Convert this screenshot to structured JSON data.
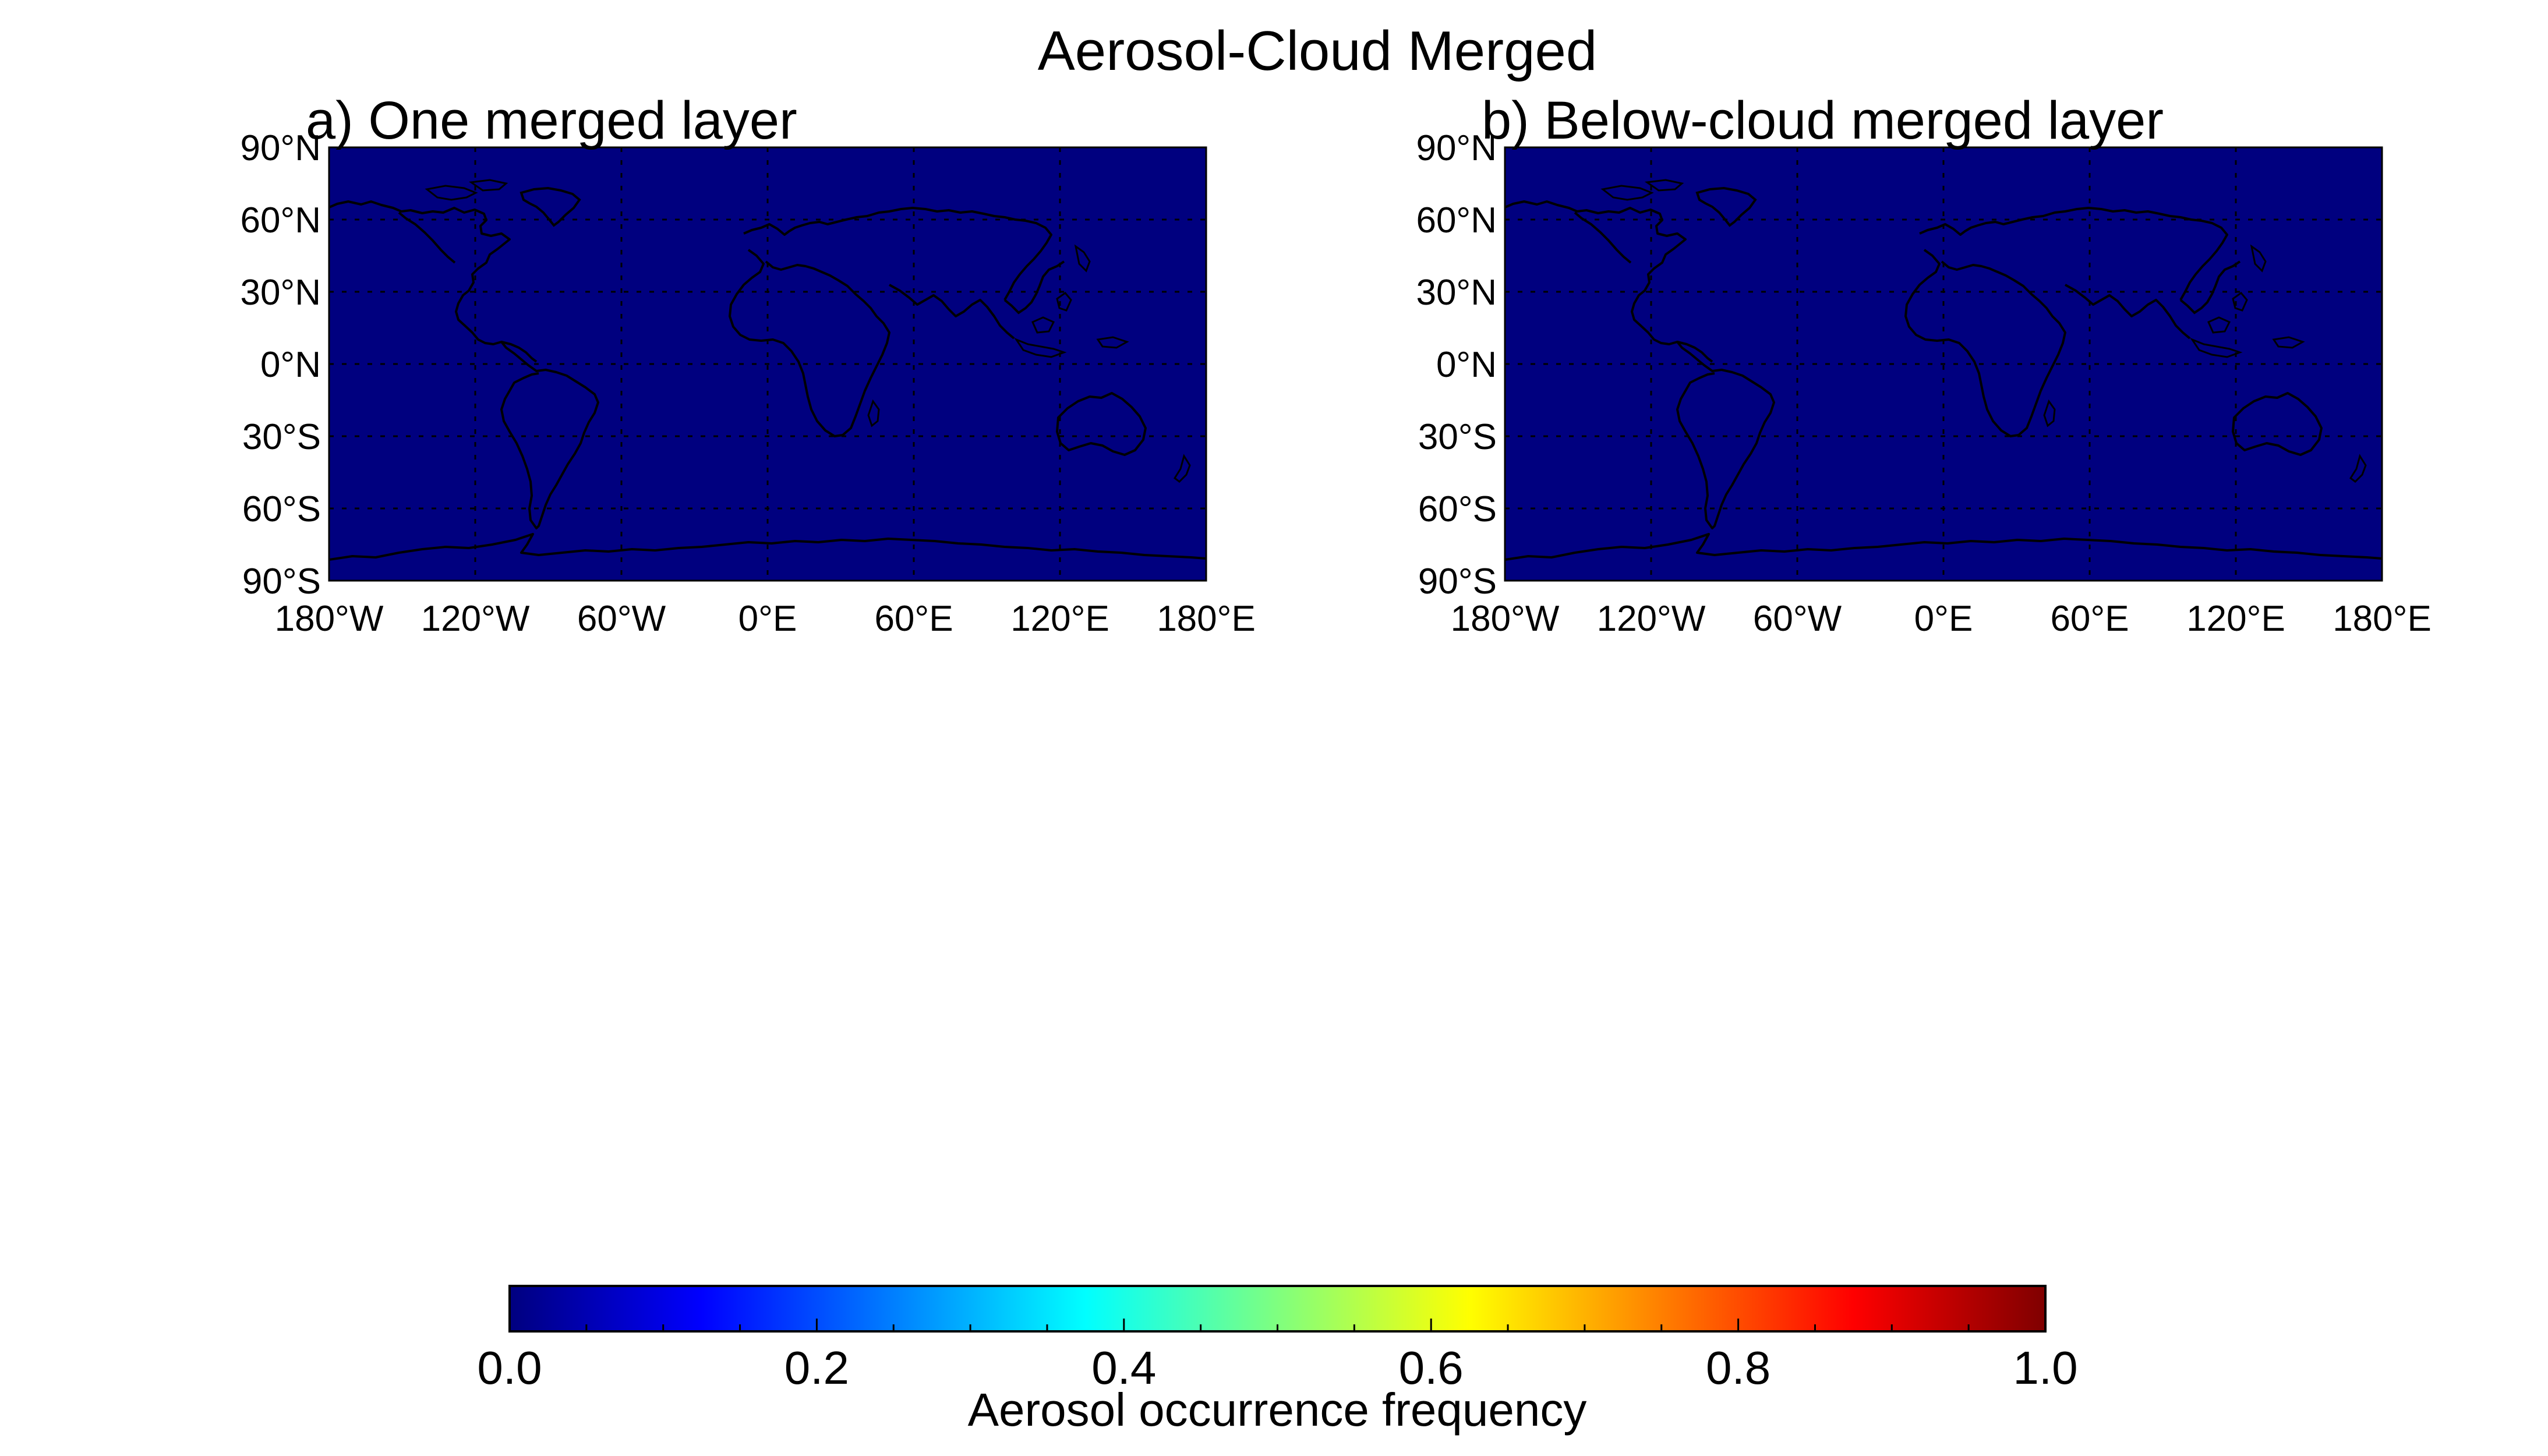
{
  "figure": {
    "title": "Aerosol-Cloud Merged"
  },
  "panels": [
    {
      "id": "a",
      "title": "a) One merged layer",
      "lat_ticks": [
        "90°N",
        "60°N",
        "30°N",
        "0°N",
        "30°S",
        "60°S",
        "90°S"
      ],
      "lon_ticks": [
        "180°W",
        "120°W",
        "60°W",
        "0°E",
        "60°E",
        "120°E",
        "180°E"
      ]
    },
    {
      "id": "b",
      "title": "b) Below-cloud merged layer",
      "lat_ticks": [
        "90°N",
        "60°N",
        "30°N",
        "0°N",
        "30°S",
        "60°S",
        "90°S"
      ],
      "lon_ticks": [
        "180°W",
        "120°W",
        "60°W",
        "0°E",
        "60°E",
        "120°E",
        "180°E"
      ]
    }
  ],
  "colorbar": {
    "label": "Aerosol occurrence frequency",
    "ticks": [
      "0.0",
      "0.2",
      "0.4",
      "0.6",
      "0.8",
      "1.0"
    ],
    "range": [
      0.0,
      1.0
    ],
    "colormap": "jet",
    "colors": [
      "#00007f",
      "#0000ff",
      "#007fff",
      "#00ffff",
      "#7fff7f",
      "#ffff00",
      "#ff7f00",
      "#ff0000",
      "#7f0000"
    ]
  },
  "chart_data": [
    {
      "type": "heatmap",
      "title": "a) One merged layer",
      "projection": "equirectangular",
      "lon_range": [
        -180,
        180
      ],
      "lat_range": [
        -90,
        90
      ],
      "lon_ticks": [
        -180,
        -120,
        -60,
        0,
        60,
        120,
        180
      ],
      "lat_ticks": [
        90,
        60,
        30,
        0,
        -30,
        -60,
        -90
      ],
      "grid": true,
      "field_value": 0.0,
      "fill_color": "#00007f",
      "coastlines": true
    },
    {
      "type": "heatmap",
      "title": "b) Below-cloud merged layer",
      "projection": "equirectangular",
      "lon_range": [
        -180,
        180
      ],
      "lat_range": [
        -90,
        90
      ],
      "lon_ticks": [
        -180,
        -120,
        -60,
        0,
        60,
        120,
        180
      ],
      "lat_ticks": [
        90,
        60,
        30,
        0,
        -30,
        -60,
        -90
      ],
      "grid": true,
      "field_value": 0.0,
      "fill_color": "#00007f",
      "coastlines": true
    }
  ]
}
